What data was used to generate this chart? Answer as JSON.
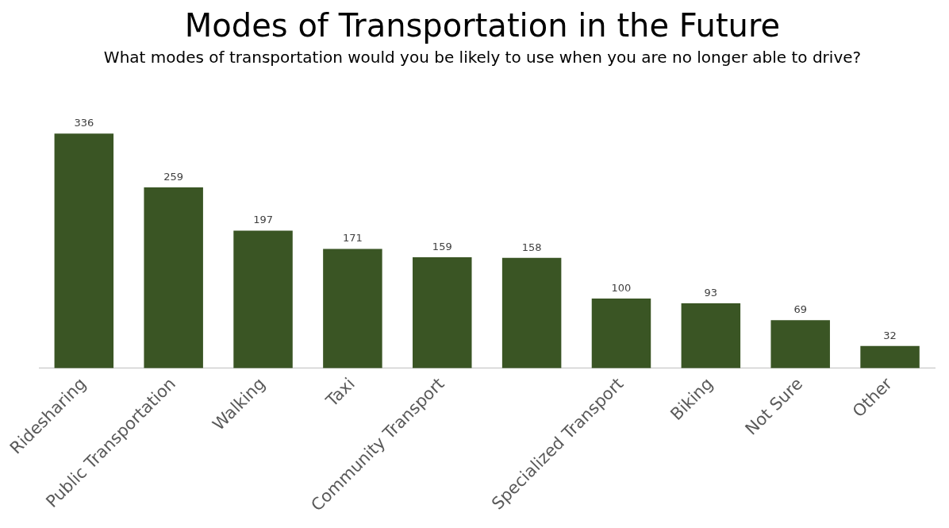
{
  "chart_data": {
    "type": "bar",
    "title": "Modes of Transportation in the Future",
    "subtitle": "What modes of transportation would you be likely to use when you are no longer able to drive?",
    "categories": [
      "Ridesharing",
      "Public Transportation",
      "Walking",
      "Taxi",
      "Community Transport",
      null,
      "Specialized Transport",
      "Biking",
      "Not Sure",
      "Other"
    ],
    "values": [
      336,
      259,
      197,
      171,
      159,
      158,
      100,
      93,
      69,
      32
    ],
    "color": "#3a5524",
    "data_labels": true,
    "legend": false,
    "grid": false
  }
}
